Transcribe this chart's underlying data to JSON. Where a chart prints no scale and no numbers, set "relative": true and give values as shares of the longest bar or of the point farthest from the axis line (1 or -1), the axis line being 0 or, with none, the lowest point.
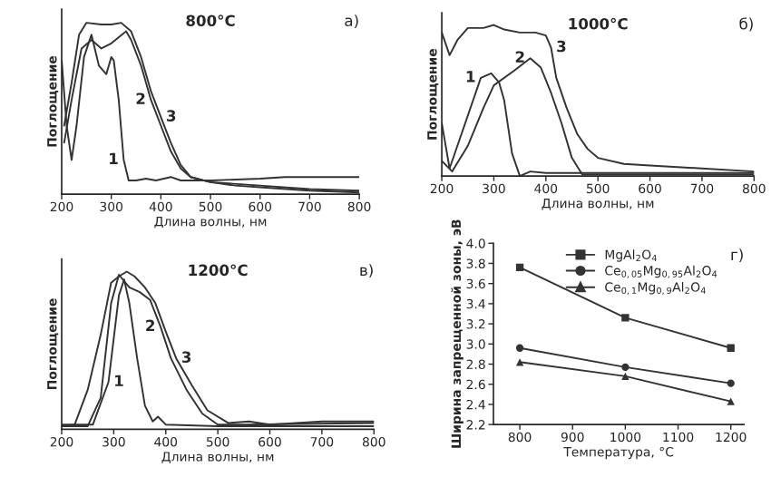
{
  "chart_data": [
    {
      "type": "line",
      "title": "800°C",
      "xlabel": "Длина волны, нм",
      "ylabel": "Поглощение",
      "relative": true,
      "xlim": [
        200,
        800
      ],
      "xticks": [
        200,
        300,
        400,
        500,
        600,
        700,
        800
      ],
      "grid": false,
      "legend": false,
      "annotations": [
        "а)",
        {
          "text": "1",
          "x": 325,
          "y": 0.2
        },
        {
          "text": "2",
          "x": 380,
          "y": 0.55
        },
        {
          "text": "3",
          "x": 400,
          "y": 0.45
        }
      ],
      "series": [
        {
          "color": "#333333",
          "x": [
            200,
            210,
            220,
            230,
            245,
            260,
            275,
            290,
            300,
            305,
            315,
            325,
            335,
            350,
            370,
            390,
            420,
            440,
            460,
            500,
            600,
            650,
            700,
            800
          ],
          "values": [
            0.78,
            0.4,
            0.2,
            0.4,
            0.8,
            0.93,
            0.75,
            0.7,
            0.8,
            0.78,
            0.55,
            0.2,
            0.08,
            0.08,
            0.09,
            0.08,
            0.1,
            0.08,
            0.08,
            0.08,
            0.09,
            0.1,
            0.1,
            0.1
          ]
        },
        {
          "color": "#333333",
          "x": [
            205,
            220,
            240,
            260,
            280,
            300,
            330,
            340,
            360,
            380,
            400,
            420,
            440,
            460,
            500,
            600,
            700,
            800
          ],
          "values": [
            0.3,
            0.55,
            0.85,
            0.9,
            0.85,
            0.88,
            0.95,
            0.9,
            0.75,
            0.55,
            0.4,
            0.25,
            0.15,
            0.1,
            0.07,
            0.05,
            0.03,
            0.02
          ]
        },
        {
          "color": "#333333",
          "x": [
            205,
            220,
            235,
            250,
            280,
            300,
            320,
            340,
            360,
            380,
            400,
            420,
            440,
            460,
            500,
            550,
            600,
            700,
            800
          ],
          "values": [
            0.4,
            0.65,
            0.93,
            1.0,
            0.99,
            0.99,
            1.0,
            0.95,
            0.8,
            0.6,
            0.45,
            0.3,
            0.17,
            0.1,
            0.07,
            0.05,
            0.04,
            0.02,
            0.01
          ]
        }
      ]
    },
    {
      "type": "line",
      "title": "1000°C",
      "xlabel": "Длина волны, нм",
      "ylabel": "Поглощение",
      "relative": true,
      "xlim": [
        200,
        800
      ],
      "xticks": [
        200,
        300,
        400,
        500,
        600,
        700,
        800
      ],
      "grid": false,
      "legend": false,
      "annotations": [
        "б)",
        {
          "text": "1",
          "x": 275,
          "y": 0.65
        },
        {
          "text": "2",
          "x": 370,
          "y": 0.78
        },
        {
          "text": "3",
          "x": 410,
          "y": 0.85
        }
      ],
      "series": [
        {
          "color": "#333333",
          "x": [
            200,
            215,
            250,
            275,
            295,
            310,
            320,
            335,
            350,
            370,
            400,
            500,
            800
          ],
          "values": [
            0.35,
            0.05,
            0.4,
            0.65,
            0.68,
            0.62,
            0.5,
            0.15,
            0.0,
            0.03,
            0.02,
            0.02,
            0.02
          ]
        },
        {
          "color": "#333333",
          "x": [
            200,
            220,
            250,
            280,
            300,
            340,
            370,
            390,
            410,
            430,
            450,
            470,
            500,
            800
          ],
          "values": [
            0.1,
            0.03,
            0.2,
            0.45,
            0.6,
            0.7,
            0.78,
            0.72,
            0.55,
            0.35,
            0.12,
            0.01,
            0.01,
            0.01
          ]
        },
        {
          "color": "#333333",
          "x": [
            200,
            215,
            230,
            250,
            280,
            300,
            320,
            350,
            380,
            400,
            410,
            420,
            440,
            460,
            480,
            500,
            550,
            600,
            700,
            800
          ],
          "values": [
            0.95,
            0.8,
            0.9,
            0.98,
            0.98,
            1.0,
            0.97,
            0.95,
            0.95,
            0.93,
            0.85,
            0.65,
            0.45,
            0.28,
            0.18,
            0.12,
            0.08,
            0.07,
            0.05,
            0.03
          ]
        }
      ]
    },
    {
      "type": "line",
      "title": "1200°C",
      "xlabel": "Длина волны, нм",
      "ylabel": "Поглощение",
      "relative": true,
      "xlim": [
        200,
        800
      ],
      "xticks": [
        200,
        300,
        400,
        500,
        600,
        700,
        800
      ],
      "grid": false,
      "legend": false,
      "annotations": [
        "в)",
        {
          "text": "1",
          "x": 290,
          "y": 0.3
        },
        {
          "text": "2",
          "x": 390,
          "y": 0.65
        },
        {
          "text": "3",
          "x": 420,
          "y": 0.45
        }
      ],
      "series": [
        {
          "color": "#333333",
          "x": [
            200,
            260,
            290,
            310,
            320,
            330,
            345,
            360,
            375,
            385,
            400,
            500,
            800
          ],
          "values": [
            0.03,
            0.03,
            0.3,
            0.85,
            0.95,
            0.8,
            0.45,
            0.15,
            0.05,
            0.08,
            0.03,
            0.02,
            0.02
          ]
        },
        {
          "color": "#333333",
          "x": [
            200,
            250,
            275,
            295,
            310,
            330,
            350,
            370,
            390,
            410,
            440,
            470,
            500,
            550,
            800
          ],
          "values": [
            0.02,
            0.02,
            0.2,
            0.8,
            0.98,
            0.9,
            0.87,
            0.82,
            0.65,
            0.45,
            0.25,
            0.1,
            0.03,
            0.03,
            0.04
          ]
        },
        {
          "color": "#333333",
          "x": [
            200,
            225,
            250,
            275,
            295,
            310,
            325,
            340,
            360,
            380,
            400,
            420,
            450,
            480,
            520,
            560,
            600,
            700,
            800
          ],
          "values": [
            0.02,
            0.03,
            0.25,
            0.6,
            0.93,
            0.97,
            1.0,
            0.97,
            0.9,
            0.8,
            0.62,
            0.45,
            0.28,
            0.12,
            0.04,
            0.05,
            0.03,
            0.05,
            0.05
          ]
        }
      ]
    },
    {
      "type": "line",
      "xlabel": "Температура, °C",
      "ylabel": "Ширина запрещенной зоны, эВ",
      "xlim": [
        750,
        1225
      ],
      "xticks": [
        800,
        900,
        1000,
        1100,
        1200
      ],
      "ylim": [
        2.2,
        4.0
      ],
      "yticks": [
        2.2,
        2.4,
        2.6,
        2.8,
        {
          "value": 3,
          "label": "3.0"
        },
        3.2,
        3.4,
        3.6,
        3.8,
        {
          "value": 4,
          "label": "4.0"
        }
      ],
      "grid": false,
      "legend": "top right",
      "annotations": [
        "г)"
      ],
      "x": [
        800,
        1000,
        1200
      ],
      "series": [
        {
          "name": "MgAl$_{2}$O$_{4}$",
          "color": "#333333",
          "marker": "square",
          "values": [
            3.76,
            3.26,
            2.96
          ]
        },
        {
          "name": "Ce$_{0,05}$Mg$_{0,95}$Al$_{2}$O$_{4}$",
          "color": "#333333",
          "marker": "circle",
          "values": [
            2.96,
            2.77,
            2.61
          ]
        },
        {
          "name": "Ce$_{0,1}$Mg$_{0,9}$Al$_{2}$O$_{4}$",
          "color": "#333333",
          "marker": "triangle",
          "values": [
            2.82,
            2.68,
            2.43
          ]
        }
      ]
    }
  ]
}
